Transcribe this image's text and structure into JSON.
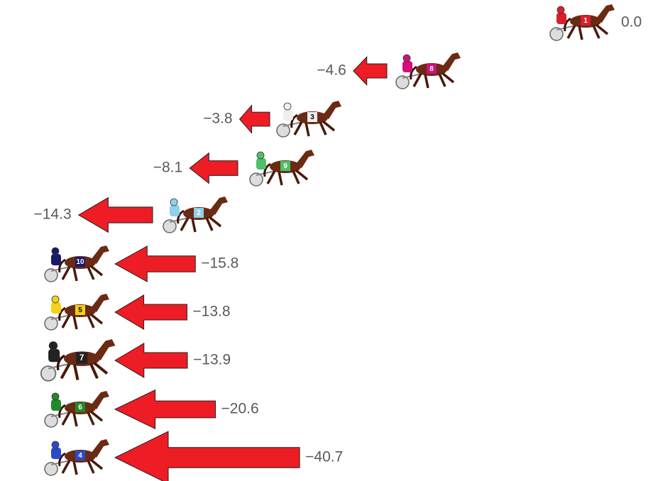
{
  "chart_data": {
    "type": "arrow",
    "values": [
      0.0,
      -4.6,
      -3.8,
      -8.1,
      -14.3,
      -15.8,
      -13.8,
      -13.9,
      -20.6,
      -40.7
    ],
    "value_labels": [
      "0.0",
      "−4.6",
      "−3.8",
      "−8.1",
      "−14.3",
      "−15.8",
      "−13.8",
      "−13.9",
      "−20.6",
      "−40.7"
    ],
    "horses": [
      1,
      8,
      3,
      9,
      2,
      10,
      5,
      7,
      6,
      4
    ],
    "horse_colors": [
      "#d8202a",
      "#d0107a",
      "#eeeeee",
      "#4fbf6a",
      "#8fd0ea",
      "#1a1a6a",
      "#f2d21a",
      "#222222",
      "#1f8a2a",
      "#2a4ac8"
    ],
    "color": "#ee1c24"
  }
}
